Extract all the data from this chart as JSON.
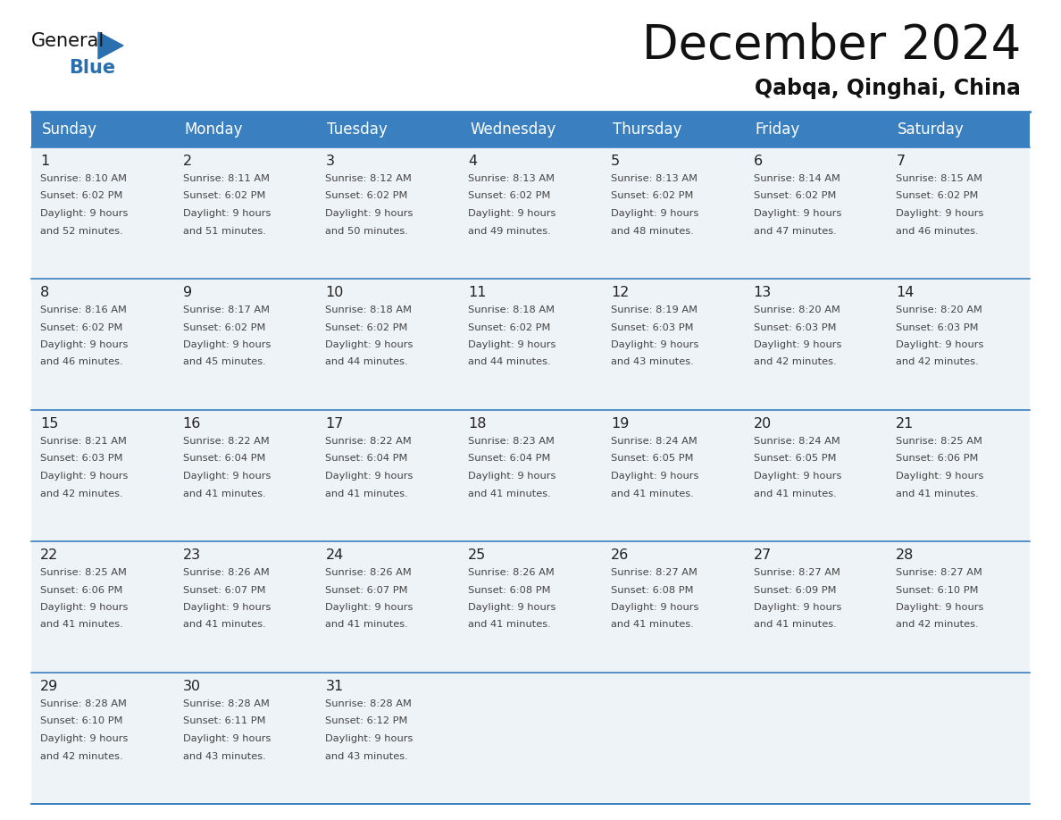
{
  "title": "December 2024",
  "subtitle": "Qabqa, Qinghai, China",
  "days_of_week": [
    "Sunday",
    "Monday",
    "Tuesday",
    "Wednesday",
    "Thursday",
    "Friday",
    "Saturday"
  ],
  "header_bg": "#3a7fbf",
  "header_text_color": "#FFFFFF",
  "cell_bg_light": "#eef3f8",
  "cell_bg_white": "#FFFFFF",
  "cell_border_color": "#3a7fbf",
  "day_number_color": "#222222",
  "day_text_color": "#444444",
  "title_color": "#111111",
  "subtitle_color": "#111111",
  "logo_general_color": "#111111",
  "logo_blue_color": "#2a6faf",
  "weeks": [
    [
      {
        "day": 1,
        "sunrise": "8:10 AM",
        "sunset": "6:02 PM",
        "daylight_h": "9 hours",
        "daylight_m": "and 52 minutes."
      },
      {
        "day": 2,
        "sunrise": "8:11 AM",
        "sunset": "6:02 PM",
        "daylight_h": "9 hours",
        "daylight_m": "and 51 minutes."
      },
      {
        "day": 3,
        "sunrise": "8:12 AM",
        "sunset": "6:02 PM",
        "daylight_h": "9 hours",
        "daylight_m": "and 50 minutes."
      },
      {
        "day": 4,
        "sunrise": "8:13 AM",
        "sunset": "6:02 PM",
        "daylight_h": "9 hours",
        "daylight_m": "and 49 minutes."
      },
      {
        "day": 5,
        "sunrise": "8:13 AM",
        "sunset": "6:02 PM",
        "daylight_h": "9 hours",
        "daylight_m": "and 48 minutes."
      },
      {
        "day": 6,
        "sunrise": "8:14 AM",
        "sunset": "6:02 PM",
        "daylight_h": "9 hours",
        "daylight_m": "and 47 minutes."
      },
      {
        "day": 7,
        "sunrise": "8:15 AM",
        "sunset": "6:02 PM",
        "daylight_h": "9 hours",
        "daylight_m": "and 46 minutes."
      }
    ],
    [
      {
        "day": 8,
        "sunrise": "8:16 AM",
        "sunset": "6:02 PM",
        "daylight_h": "9 hours",
        "daylight_m": "and 46 minutes."
      },
      {
        "day": 9,
        "sunrise": "8:17 AM",
        "sunset": "6:02 PM",
        "daylight_h": "9 hours",
        "daylight_m": "and 45 minutes."
      },
      {
        "day": 10,
        "sunrise": "8:18 AM",
        "sunset": "6:02 PM",
        "daylight_h": "9 hours",
        "daylight_m": "and 44 minutes."
      },
      {
        "day": 11,
        "sunrise": "8:18 AM",
        "sunset": "6:02 PM",
        "daylight_h": "9 hours",
        "daylight_m": "and 44 minutes."
      },
      {
        "day": 12,
        "sunrise": "8:19 AM",
        "sunset": "6:03 PM",
        "daylight_h": "9 hours",
        "daylight_m": "and 43 minutes."
      },
      {
        "day": 13,
        "sunrise": "8:20 AM",
        "sunset": "6:03 PM",
        "daylight_h": "9 hours",
        "daylight_m": "and 42 minutes."
      },
      {
        "day": 14,
        "sunrise": "8:20 AM",
        "sunset": "6:03 PM",
        "daylight_h": "9 hours",
        "daylight_m": "and 42 minutes."
      }
    ],
    [
      {
        "day": 15,
        "sunrise": "8:21 AM",
        "sunset": "6:03 PM",
        "daylight_h": "9 hours",
        "daylight_m": "and 42 minutes."
      },
      {
        "day": 16,
        "sunrise": "8:22 AM",
        "sunset": "6:04 PM",
        "daylight_h": "9 hours",
        "daylight_m": "and 41 minutes."
      },
      {
        "day": 17,
        "sunrise": "8:22 AM",
        "sunset": "6:04 PM",
        "daylight_h": "9 hours",
        "daylight_m": "and 41 minutes."
      },
      {
        "day": 18,
        "sunrise": "8:23 AM",
        "sunset": "6:04 PM",
        "daylight_h": "9 hours",
        "daylight_m": "and 41 minutes."
      },
      {
        "day": 19,
        "sunrise": "8:24 AM",
        "sunset": "6:05 PM",
        "daylight_h": "9 hours",
        "daylight_m": "and 41 minutes."
      },
      {
        "day": 20,
        "sunrise": "8:24 AM",
        "sunset": "6:05 PM",
        "daylight_h": "9 hours",
        "daylight_m": "and 41 minutes."
      },
      {
        "day": 21,
        "sunrise": "8:25 AM",
        "sunset": "6:06 PM",
        "daylight_h": "9 hours",
        "daylight_m": "and 41 minutes."
      }
    ],
    [
      {
        "day": 22,
        "sunrise": "8:25 AM",
        "sunset": "6:06 PM",
        "daylight_h": "9 hours",
        "daylight_m": "and 41 minutes."
      },
      {
        "day": 23,
        "sunrise": "8:26 AM",
        "sunset": "6:07 PM",
        "daylight_h": "9 hours",
        "daylight_m": "and 41 minutes."
      },
      {
        "day": 24,
        "sunrise": "8:26 AM",
        "sunset": "6:07 PM",
        "daylight_h": "9 hours",
        "daylight_m": "and 41 minutes."
      },
      {
        "day": 25,
        "sunrise": "8:26 AM",
        "sunset": "6:08 PM",
        "daylight_h": "9 hours",
        "daylight_m": "and 41 minutes."
      },
      {
        "day": 26,
        "sunrise": "8:27 AM",
        "sunset": "6:08 PM",
        "daylight_h": "9 hours",
        "daylight_m": "and 41 minutes."
      },
      {
        "day": 27,
        "sunrise": "8:27 AM",
        "sunset": "6:09 PM",
        "daylight_h": "9 hours",
        "daylight_m": "and 41 minutes."
      },
      {
        "day": 28,
        "sunrise": "8:27 AM",
        "sunset": "6:10 PM",
        "daylight_h": "9 hours",
        "daylight_m": "and 42 minutes."
      }
    ],
    [
      {
        "day": 29,
        "sunrise": "8:28 AM",
        "sunset": "6:10 PM",
        "daylight_h": "9 hours",
        "daylight_m": "and 42 minutes."
      },
      {
        "day": 30,
        "sunrise": "8:28 AM",
        "sunset": "6:11 PM",
        "daylight_h": "9 hours",
        "daylight_m": "and 43 minutes."
      },
      {
        "day": 31,
        "sunrise": "8:28 AM",
        "sunset": "6:12 PM",
        "daylight_h": "9 hours",
        "daylight_m": "and 43 minutes."
      },
      null,
      null,
      null,
      null
    ]
  ]
}
